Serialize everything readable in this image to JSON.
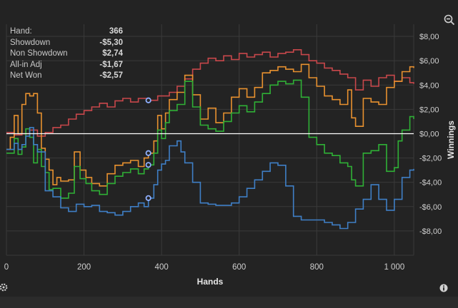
{
  "summary": {
    "hand_label": "Hand:",
    "hand_value": "366",
    "showdown_label": "Showdown",
    "showdown_value": "-$5,30",
    "nonshowdown_label": "Non Showdown",
    "nonshowdown_value": "$2,74",
    "allin_label": "All-in Adj",
    "allin_value": "-$1,67",
    "netwon_label": "Net Won",
    "netwon_value": "-$2,57"
  },
  "icons": {
    "zoom": "zoom-out-icon",
    "settings": "gear-icon",
    "info": "info-icon"
  },
  "colors": {
    "background": "#232323",
    "grid": "#3a3a3a",
    "zero_line": "#ffffff",
    "nonshowdown": "#c8474b",
    "allin": "#e8912f",
    "netwon": "#2fb036",
    "showdown": "#3f7fc6",
    "marker": "#8fb0ff"
  },
  "chart_data": {
    "type": "line",
    "xlabel": "Hands",
    "ylabel": "Winnings",
    "xlim": [
      0,
      1050
    ],
    "ylim": [
      -10,
      9
    ],
    "x_ticks": [
      0,
      200,
      400,
      600,
      800,
      1000
    ],
    "x_tick_labels": [
      "0",
      "200",
      "400",
      "600",
      "800",
      "1 000"
    ],
    "y_ticks": [
      8,
      6,
      4,
      2,
      0,
      -2,
      -4,
      -6,
      -8
    ],
    "y_tick_labels": [
      "$8,00",
      "$6,00",
      "$4,00",
      "$2,00",
      "$0,00",
      "-$2,00",
      "-$4,00",
      "-$6,00",
      "-$8,00"
    ],
    "marker_x": 366,
    "series": [
      {
        "key": "nonshowdown",
        "points": [
          [
            0,
            0.1
          ],
          [
            20,
            -0.1
          ],
          [
            40,
            0.0
          ],
          [
            60,
            0.3
          ],
          [
            80,
            -0.2
          ],
          [
            100,
            0.1
          ],
          [
            120,
            0.5
          ],
          [
            140,
            0.7
          ],
          [
            160,
            1.2
          ],
          [
            180,
            1.6
          ],
          [
            200,
            1.9
          ],
          [
            220,
            2.2
          ],
          [
            240,
            2.5
          ],
          [
            260,
            2.2
          ],
          [
            280,
            2.7
          ],
          [
            300,
            2.9
          ],
          [
            320,
            2.6
          ],
          [
            340,
            2.9
          ],
          [
            366,
            2.74
          ],
          [
            390,
            3.1
          ],
          [
            420,
            3.4
          ],
          [
            440,
            3.9
          ],
          [
            460,
            4.5
          ],
          [
            480,
            5.3
          ],
          [
            500,
            5.8
          ],
          [
            520,
            6.2
          ],
          [
            540,
            6.0
          ],
          [
            560,
            6.4
          ],
          [
            580,
            6.1
          ],
          [
            600,
            6.6
          ],
          [
            620,
            6.3
          ],
          [
            640,
            6.5
          ],
          [
            660,
            6.7
          ],
          [
            680,
            6.3
          ],
          [
            700,
            6.6
          ],
          [
            720,
            6.7
          ],
          [
            740,
            6.9
          ],
          [
            760,
            6.5
          ],
          [
            780,
            6.0
          ],
          [
            800,
            5.8
          ],
          [
            820,
            5.4
          ],
          [
            840,
            5.2
          ],
          [
            860,
            4.9
          ],
          [
            880,
            4.6
          ],
          [
            900,
            3.6
          ],
          [
            920,
            4.4
          ],
          [
            940,
            3.9
          ],
          [
            960,
            4.6
          ],
          [
            980,
            4.8
          ],
          [
            1000,
            4.3
          ],
          [
            1020,
            4.6
          ],
          [
            1040,
            4.2
          ],
          [
            1050,
            4.1
          ]
        ]
      },
      {
        "key": "allin",
        "points": [
          [
            0,
            -1.3
          ],
          [
            10,
            -0.3
          ],
          [
            20,
            1.5
          ],
          [
            30,
            0.0
          ],
          [
            40,
            2.4
          ],
          [
            50,
            3.3
          ],
          [
            60,
            3.1
          ],
          [
            70,
            3.3
          ],
          [
            80,
            1.7
          ],
          [
            90,
            -1.2
          ],
          [
            100,
            -2.1
          ],
          [
            110,
            -3.0
          ],
          [
            120,
            -4.2
          ],
          [
            130,
            -3.6
          ],
          [
            140,
            -3.9
          ],
          [
            160,
            -3.8
          ],
          [
            175,
            -1.5
          ],
          [
            190,
            -3.0
          ],
          [
            205,
            -3.6
          ],
          [
            220,
            -4.1
          ],
          [
            240,
            -4.3
          ],
          [
            260,
            -3.3
          ],
          [
            280,
            -2.6
          ],
          [
            300,
            -2.4
          ],
          [
            320,
            -2.2
          ],
          [
            340,
            -2.7
          ],
          [
            355,
            -2.0
          ],
          [
            366,
            -1.6
          ],
          [
            380,
            -0.6
          ],
          [
            390,
            1.5
          ],
          [
            400,
            0.4
          ],
          [
            410,
            1.7
          ],
          [
            420,
            2.8
          ],
          [
            440,
            3.4
          ],
          [
            460,
            4.8
          ],
          [
            480,
            3.2
          ],
          [
            500,
            1.2
          ],
          [
            520,
            2.1
          ],
          [
            540,
            0.9
          ],
          [
            560,
            1.7
          ],
          [
            580,
            3.0
          ],
          [
            600,
            3.7
          ],
          [
            620,
            3.0
          ],
          [
            640,
            3.8
          ],
          [
            660,
            5.0
          ],
          [
            680,
            5.2
          ],
          [
            700,
            5.5
          ],
          [
            720,
            5.3
          ],
          [
            740,
            5.1
          ],
          [
            760,
            5.7
          ],
          [
            780,
            4.6
          ],
          [
            800,
            3.9
          ],
          [
            820,
            3.1
          ],
          [
            840,
            2.8
          ],
          [
            860,
            2.4
          ],
          [
            880,
            3.6
          ],
          [
            890,
            1.3
          ],
          [
            900,
            0.6
          ],
          [
            920,
            2.9
          ],
          [
            940,
            2.6
          ],
          [
            960,
            2.4
          ],
          [
            980,
            3.8
          ],
          [
            1000,
            4.3
          ],
          [
            1020,
            5.1
          ],
          [
            1040,
            5.5
          ],
          [
            1050,
            5.4
          ]
        ]
      },
      {
        "key": "netwon",
        "points": [
          [
            0,
            -1.6
          ],
          [
            20,
            -0.4
          ],
          [
            30,
            -1.7
          ],
          [
            40,
            -1.1
          ],
          [
            50,
            0.4
          ],
          [
            60,
            -0.3
          ],
          [
            70,
            -2.4
          ],
          [
            80,
            -1.3
          ],
          [
            90,
            -2.7
          ],
          [
            100,
            -3.2
          ],
          [
            110,
            -4.6
          ],
          [
            120,
            -4.5
          ],
          [
            140,
            -5.3
          ],
          [
            160,
            -4.9
          ],
          [
            175,
            -2.7
          ],
          [
            190,
            -3.7
          ],
          [
            205,
            -4.1
          ],
          [
            220,
            -4.7
          ],
          [
            240,
            -5.0
          ],
          [
            260,
            -4.1
          ],
          [
            280,
            -3.5
          ],
          [
            300,
            -3.2
          ],
          [
            320,
            -2.9
          ],
          [
            340,
            -3.3
          ],
          [
            355,
            -2.9
          ],
          [
            366,
            -2.57
          ],
          [
            380,
            -1.6
          ],
          [
            390,
            0.3
          ],
          [
            400,
            -0.4
          ],
          [
            410,
            0.9
          ],
          [
            420,
            1.9
          ],
          [
            440,
            2.4
          ],
          [
            460,
            4.3
          ],
          [
            480,
            2.2
          ],
          [
            500,
            0.7
          ],
          [
            520,
            0.4
          ],
          [
            540,
            0.2
          ],
          [
            560,
            1.0
          ],
          [
            580,
            1.7
          ],
          [
            600,
            2.3
          ],
          [
            620,
            1.8
          ],
          [
            640,
            2.6
          ],
          [
            660,
            3.3
          ],
          [
            680,
            4.0
          ],
          [
            700,
            4.3
          ],
          [
            720,
            4.1
          ],
          [
            740,
            4.4
          ],
          [
            760,
            3.0
          ],
          [
            780,
            -0.3
          ],
          [
            800,
            -0.9
          ],
          [
            820,
            -1.6
          ],
          [
            840,
            -1.8
          ],
          [
            860,
            -2.4
          ],
          [
            880,
            -2.7
          ],
          [
            890,
            -3.8
          ],
          [
            900,
            -4.3
          ],
          [
            920,
            -1.6
          ],
          [
            940,
            -1.4
          ],
          [
            960,
            -0.9
          ],
          [
            980,
            -3.1
          ],
          [
            1000,
            -2.8
          ],
          [
            1010,
            -0.6
          ],
          [
            1020,
            0.3
          ],
          [
            1040,
            1.4
          ],
          [
            1050,
            1.2
          ]
        ]
      },
      {
        "key": "showdown",
        "points": [
          [
            0,
            -1.3
          ],
          [
            20,
            -0.8
          ],
          [
            30,
            -1.3
          ],
          [
            40,
            -0.9
          ],
          [
            50,
            -0.2
          ],
          [
            60,
            0.5
          ],
          [
            70,
            -0.9
          ],
          [
            80,
            -1.5
          ],
          [
            100,
            -4.7
          ],
          [
            120,
            -5.2
          ],
          [
            140,
            -6.1
          ],
          [
            160,
            -6.4
          ],
          [
            180,
            -5.8
          ],
          [
            200,
            -6.0
          ],
          [
            220,
            -5.9
          ],
          [
            240,
            -6.4
          ],
          [
            260,
            -6.5
          ],
          [
            280,
            -6.7
          ],
          [
            300,
            -6.4
          ],
          [
            320,
            -6.0
          ],
          [
            340,
            -5.7
          ],
          [
            355,
            -6.0
          ],
          [
            366,
            -5.3
          ],
          [
            380,
            -4.2
          ],
          [
            390,
            -3.0
          ],
          [
            400,
            -2.5
          ],
          [
            410,
            -2.2
          ],
          [
            420,
            -1.0
          ],
          [
            440,
            -0.6
          ],
          [
            450,
            -1.5
          ],
          [
            460,
            -2.4
          ],
          [
            480,
            -4.0
          ],
          [
            500,
            -5.7
          ],
          [
            520,
            -5.8
          ],
          [
            540,
            -5.9
          ],
          [
            560,
            -5.9
          ],
          [
            580,
            -5.7
          ],
          [
            600,
            -5.2
          ],
          [
            620,
            -4.5
          ],
          [
            640,
            -3.8
          ],
          [
            660,
            -3.1
          ],
          [
            680,
            -2.4
          ],
          [
            700,
            -2.6
          ],
          [
            720,
            -4.3
          ],
          [
            740,
            -6.8
          ],
          [
            760,
            -7.1
          ],
          [
            780,
            -7.1
          ],
          [
            800,
            -7.1
          ],
          [
            820,
            -7.3
          ],
          [
            840,
            -7.5
          ],
          [
            860,
            -7.8
          ],
          [
            880,
            -7.3
          ],
          [
            900,
            -6.2
          ],
          [
            920,
            -5.4
          ],
          [
            940,
            -4.2
          ],
          [
            960,
            -5.4
          ],
          [
            980,
            -6.3
          ],
          [
            1000,
            -5.4
          ],
          [
            1020,
            -3.6
          ],
          [
            1040,
            -3.0
          ],
          [
            1050,
            -2.9
          ]
        ]
      }
    ]
  }
}
